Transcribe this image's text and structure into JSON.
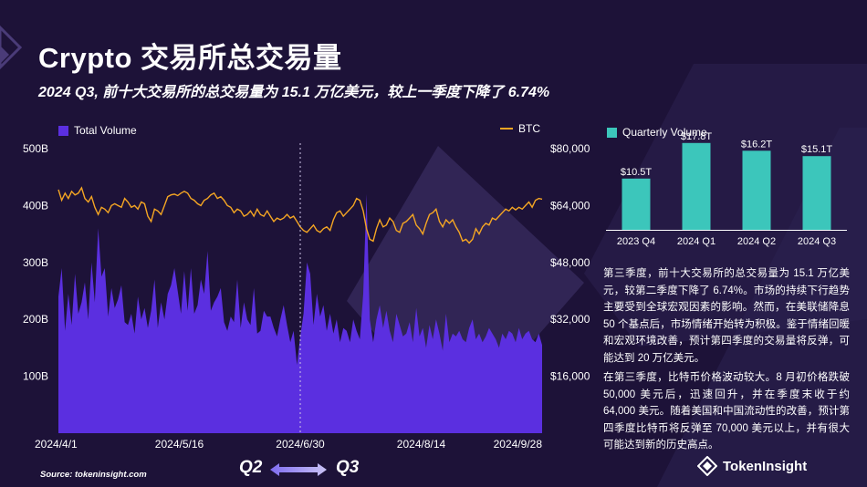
{
  "title": "Crypto 交易所总交易量",
  "subtitle": "2024 Q3, 前十大交易所的总交易量为 15.1 万亿美元，较上一季度下降了 6.74%",
  "source": "Source: tokeninsight.com",
  "brand": "TokenInsight",
  "quarter_from": "Q2",
  "quarter_to": "Q3",
  "description": [
    "第三季度，前十大交易所的总交易量为 15.1 万亿美元，较第二季度下降了 6.74%。市场的持续下行趋势主要受到全球宏观因素的影响。然而，在美联储降息 50 个基点后，市场情绪开始转为积极。鉴于情绪回暖和宏观环境改善，预计第四季度的交易量将反弹，可能达到 20 万亿美元。",
    "在第三季度，比特币价格波动较大。8 月初价格跌破 50,000 美元后，迅速回升，并在季度末收于约 64,000 美元。随着美国和中国流动性的改善，预计第四季度比特币将反弹至 70,000 美元以上，并有很大可能达到新的历史高点。"
  ],
  "colors": {
    "background": "#1d1238",
    "volume": "#5b2fe0",
    "btc": "#f5a623",
    "quarterly": "#3cc6bb"
  },
  "chart_data": [
    {
      "type": "area",
      "title": "",
      "series": [
        {
          "name": "Total Volume",
          "axis": "left",
          "type": "area",
          "values": [
            240,
            290,
            180,
            245,
            190,
            280,
            210,
            230,
            265,
            200,
            300,
            230,
            360,
            275,
            290,
            205,
            255,
            220,
            235,
            260,
            195,
            190,
            210,
            175,
            240,
            200,
            220,
            185,
            215,
            270,
            185,
            230,
            200,
            245,
            260,
            290,
            250,
            210,
            285,
            215,
            290,
            210,
            225,
            270,
            245,
            320,
            215,
            230,
            240,
            255,
            195,
            180,
            205,
            195,
            270,
            185,
            230,
            200,
            190,
            255,
            175,
            180,
            215,
            205,
            205,
            185,
            170,
            200,
            225,
            190,
            160,
            180,
            120,
            170,
            210,
            300,
            280,
            190,
            245,
            205,
            225,
            180,
            210,
            175,
            200,
            160,
            185,
            180,
            160,
            200,
            180,
            165,
            245,
            420,
            200,
            160,
            200,
            225,
            185,
            215,
            180,
            160,
            210,
            190,
            170,
            175,
            195,
            160,
            220,
            170,
            185,
            150,
            190,
            165,
            200,
            175,
            145,
            210,
            160,
            175,
            170,
            180,
            165,
            160,
            185,
            200,
            165,
            175,
            160,
            170,
            185,
            175,
            165,
            150,
            175,
            165,
            180,
            175,
            160,
            185,
            165,
            175,
            180,
            165,
            160,
            175,
            155
          ]
        },
        {
          "name": "BTC",
          "axis": "right",
          "type": "line",
          "values": [
            68500,
            65500,
            67500,
            66000,
            68000,
            67000,
            67500,
            69000,
            66000,
            65000,
            66500,
            63500,
            61500,
            63500,
            63000,
            62000,
            64000,
            64500,
            64000,
            63500,
            66000,
            65000,
            63500,
            64000,
            63000,
            65000,
            64500,
            61000,
            59500,
            63000,
            62500,
            61500,
            64000,
            66500,
            67000,
            67200,
            66800,
            67500,
            68000,
            67500,
            66000,
            65500,
            64500,
            64000,
            65500,
            66000,
            67000,
            67500,
            66000,
            66500,
            65500,
            64000,
            63500,
            62000,
            63000,
            62500,
            61000,
            61500,
            62500,
            61000,
            63000,
            61500,
            61000,
            62500,
            61000,
            59500,
            60500,
            60000,
            60500,
            61500,
            60500,
            61000,
            59500,
            58000,
            57000,
            56500,
            57500,
            58500,
            57000,
            56500,
            57500,
            58000,
            57000,
            60000,
            62000,
            62500,
            61000,
            62000,
            63000,
            64000,
            66000,
            65500,
            62500,
            57500,
            54500,
            54000,
            57500,
            60000,
            58000,
            58500,
            60500,
            59500,
            57000,
            56500,
            59000,
            59500,
            60500,
            61500,
            58500,
            57500,
            56000,
            59000,
            61500,
            62000,
            63000,
            59500,
            58000,
            60000,
            59000,
            60000,
            58000,
            56500,
            54000,
            54500,
            53500,
            54500,
            57500,
            56000,
            58000,
            59000,
            58500,
            60500,
            60000,
            61000,
            62000,
            63000,
            62500,
            63500,
            62800,
            63500,
            63000,
            64000,
            65000,
            63500,
            65500,
            66000,
            65800
          ]
        }
      ],
      "x_tick_labels": [
        "2024/4/1",
        "2024/5/16",
        "2024/6/30",
        "2024/8/14",
        "2024/9/28"
      ],
      "y_left_ticks": [
        "100B",
        "200B",
        "300B",
        "400B",
        "500B"
      ],
      "y_left_lim": [
        0,
        500
      ],
      "y_right_ticks": [
        "$16,000",
        "$32,000",
        "$48,000",
        "$64,000",
        "$80,000"
      ],
      "y_right_lim": [
        0,
        80000
      ],
      "divider_label": "2024/6/30",
      "grid": false,
      "legend": [
        "Total Volume",
        "BTC"
      ]
    },
    {
      "type": "bar",
      "title": "",
      "categories": [
        "2023 Q4",
        "2024 Q1",
        "2024 Q2",
        "2024 Q3"
      ],
      "series": [
        {
          "name": "Quarterly Volume",
          "values": [
            10.5,
            17.8,
            16.2,
            15.1
          ]
        }
      ],
      "labels": [
        "$10.5T",
        "$17.8T",
        "$16.2T",
        "$15.1T"
      ],
      "ylim": [
        0,
        20
      ],
      "grid": false,
      "legend": [
        "Quarterly Volume"
      ]
    }
  ]
}
